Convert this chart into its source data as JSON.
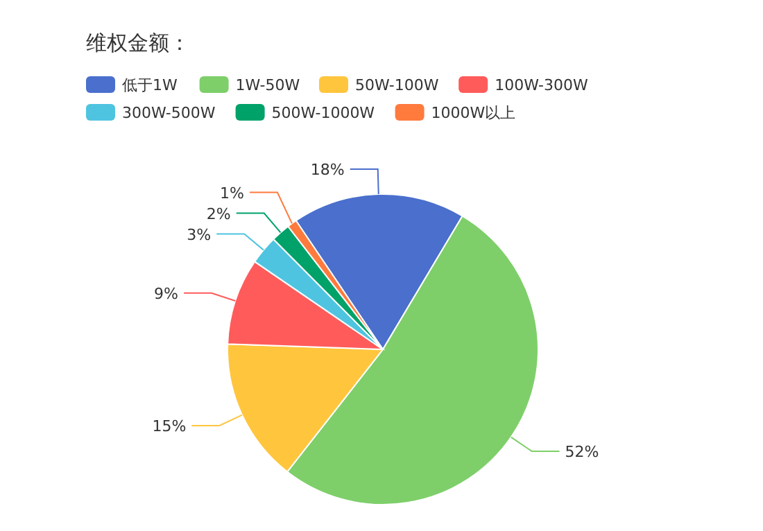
{
  "chart_data": {
    "type": "pie",
    "title": "维权金额：",
    "legend": "top left",
    "categories": [
      "低于1W",
      "1W-50W",
      "50W-100W",
      "100W-300W",
      "300W-500W",
      "500W-1000W",
      "1000W以上"
    ],
    "values": [
      18,
      52,
      15,
      9,
      3,
      2,
      1
    ],
    "value_labels": [
      "18%",
      "52%",
      "15%",
      "9%",
      "3%",
      "2%",
      "1%"
    ],
    "colors": [
      "#4a6fcd",
      "#7ecf6a",
      "#ffc53d",
      "#ff5b5b",
      "#4fc4e0",
      "#00a26a",
      "#ff7a3d"
    ]
  }
}
